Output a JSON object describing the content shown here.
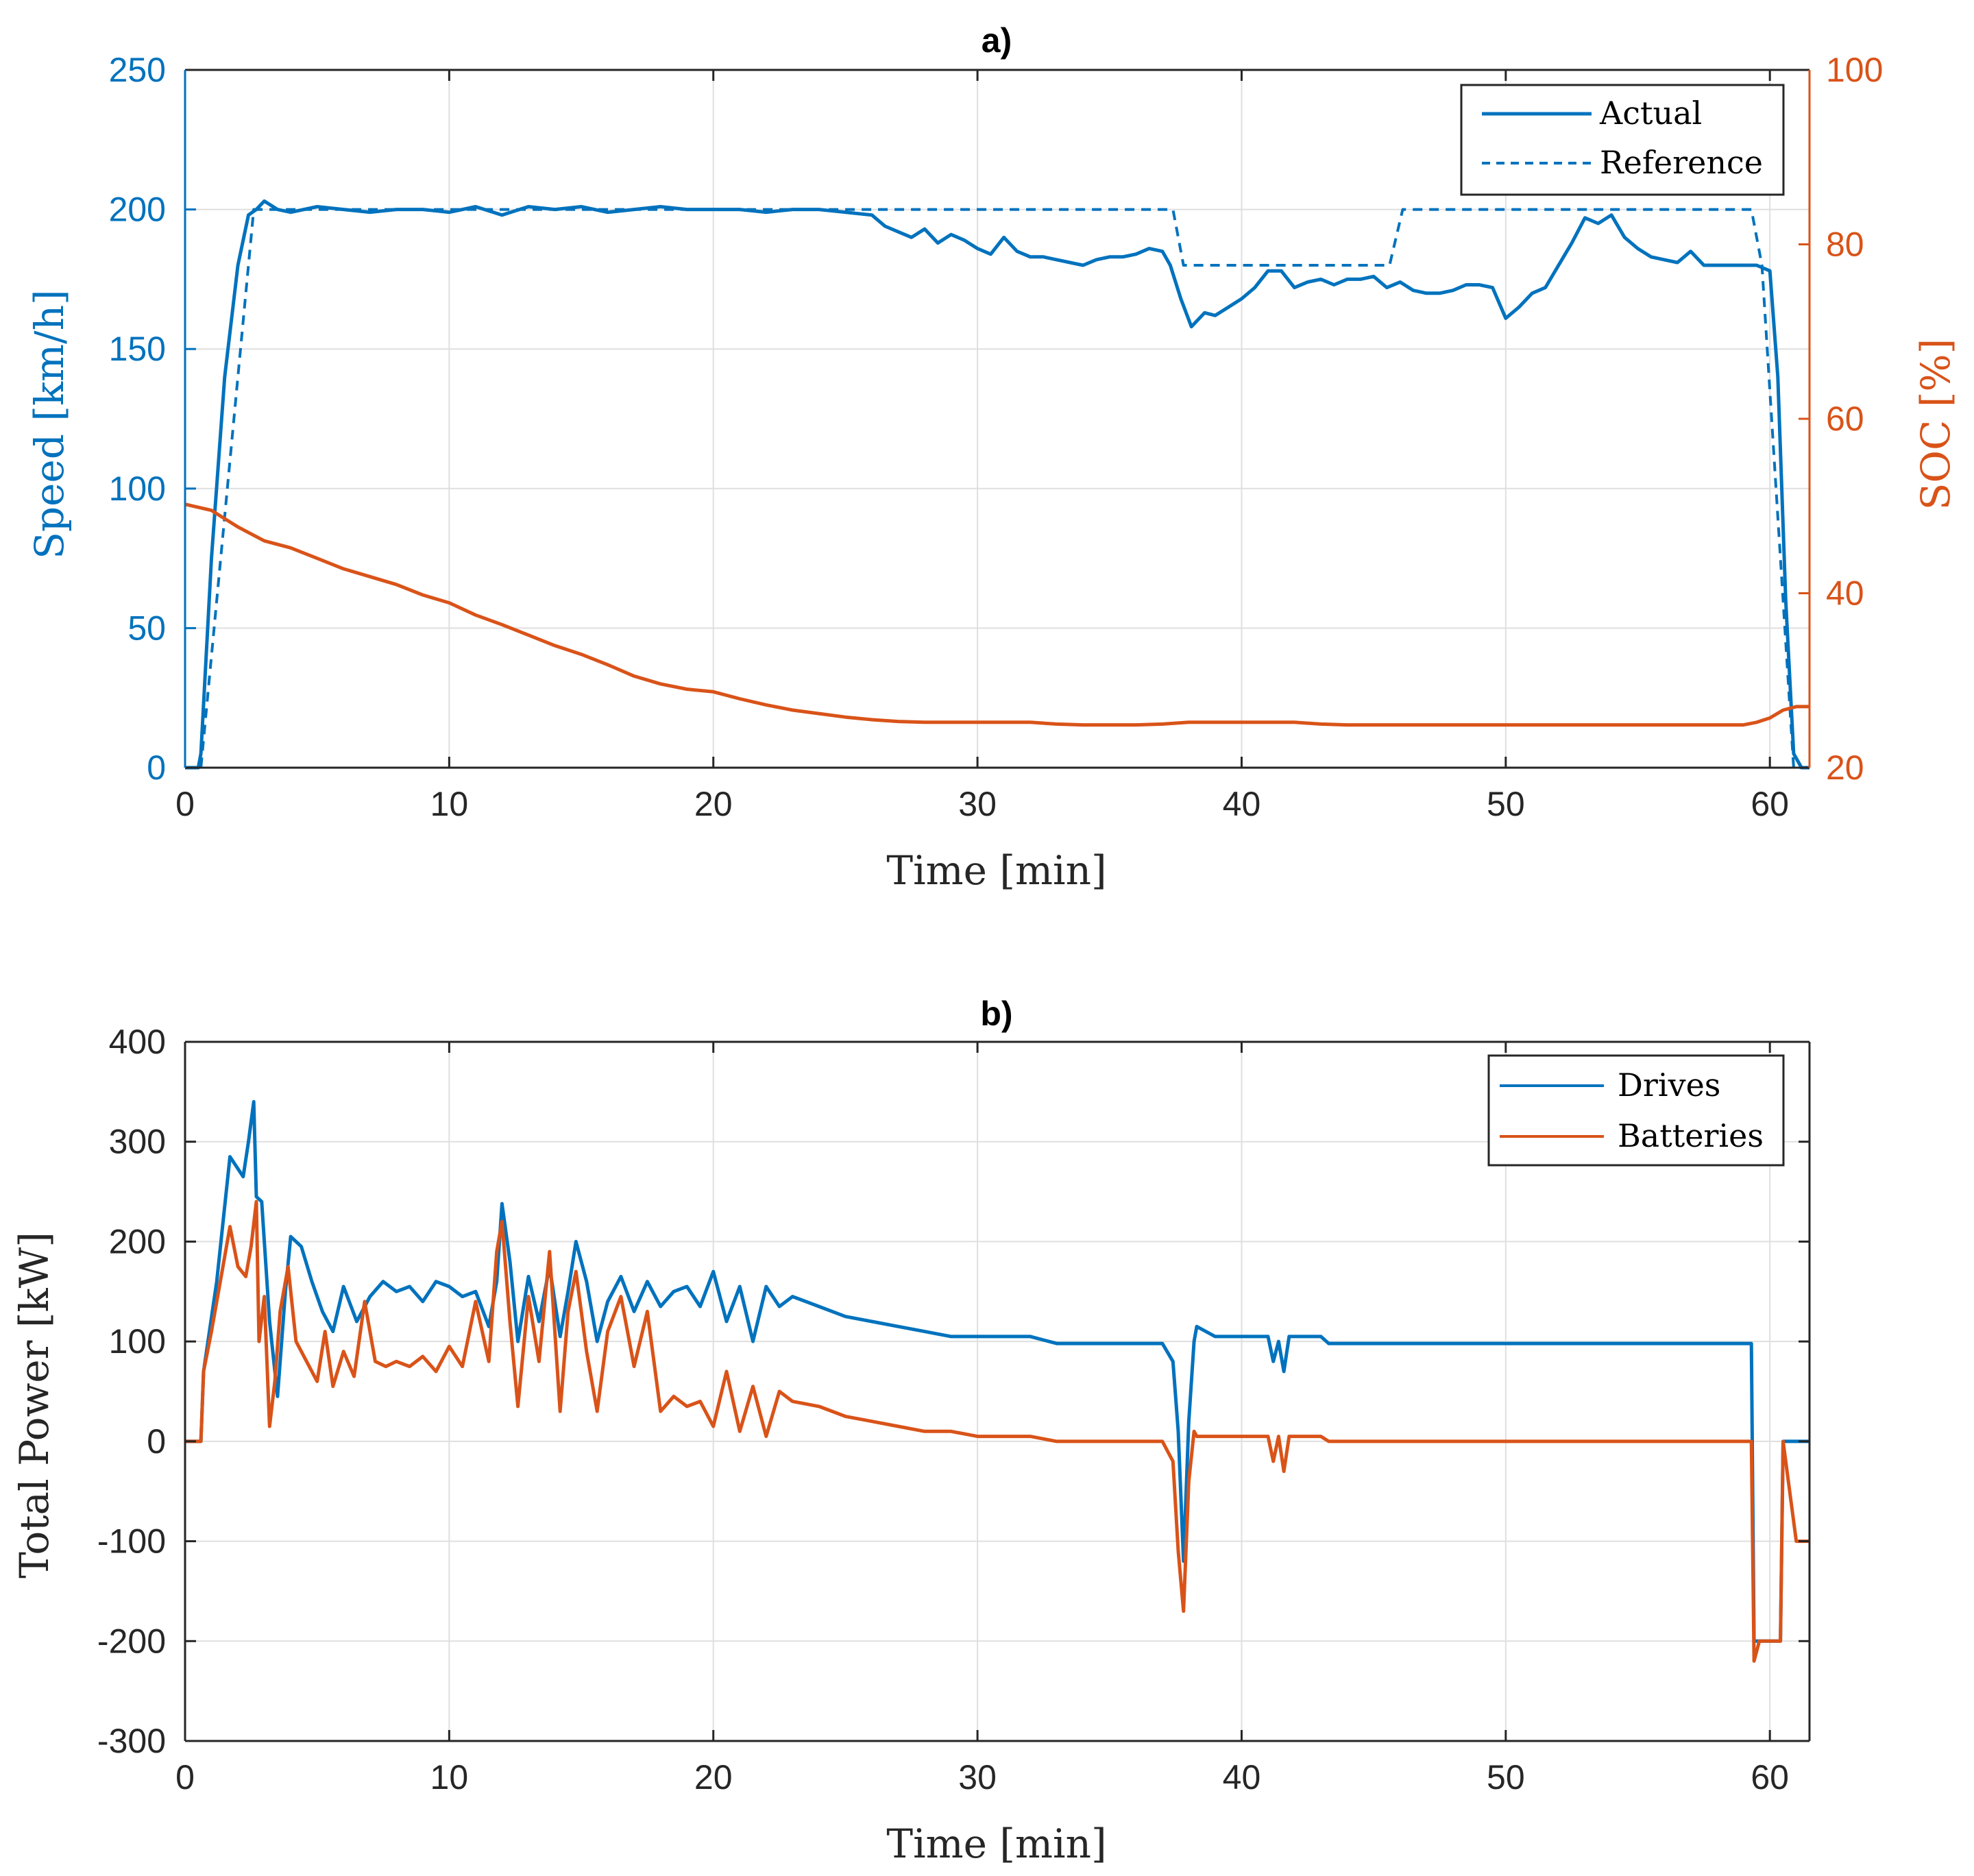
{
  "colors": {
    "blue": "#0072BD",
    "orange": "#D95319",
    "axis": "#262626"
  },
  "chart_data": [
    {
      "id": "a",
      "type": "line",
      "title": "a)",
      "xlabel": "Time [min]",
      "ylabel": "Speed [km/h]",
      "ylabel_right": "SOC [%]",
      "xlim": [
        0,
        61.5
      ],
      "ylim": [
        0,
        250
      ],
      "ylim_right": [
        20,
        100
      ],
      "xticks": [
        0,
        10,
        20,
        30,
        40,
        50,
        60
      ],
      "yticks": [
        0,
        50,
        100,
        150,
        200,
        250
      ],
      "yticks_right": [
        20,
        40,
        60,
        80,
        100
      ],
      "grid": true,
      "legend_position": "top-right",
      "series": [
        {
          "name": "Actual",
          "axis": "left",
          "style": "solid",
          "color": "#0072BD",
          "x": [
            0,
            0.5,
            0.6,
            1.0,
            1.5,
            2.0,
            2.4,
            2.7,
            3.0,
            3.5,
            4.0,
            5,
            6,
            7,
            8,
            9,
            10,
            11,
            12,
            13,
            14,
            15,
            16,
            17,
            18,
            19,
            20,
            21,
            22,
            23,
            24,
            25,
            26,
            26.5,
            27,
            27.5,
            28,
            28.5,
            29,
            29.5,
            30,
            30.5,
            31,
            31.5,
            32,
            32.5,
            33,
            33.5,
            34,
            34.5,
            35,
            35.5,
            36,
            36.5,
            37,
            37.3,
            37.7,
            38.1,
            38.6,
            39,
            39.5,
            40,
            40.5,
            41,
            41.5,
            42,
            42.5,
            43,
            43.5,
            44,
            44.5,
            45,
            45.5,
            46,
            46.5,
            47,
            47.5,
            48,
            48.5,
            49,
            49.5,
            50,
            50.5,
            51,
            51.5,
            52,
            52.5,
            53,
            53.5,
            54,
            54.5,
            55,
            55.5,
            56,
            56.5,
            57,
            57.5,
            58,
            58.5,
            59,
            59.5,
            60,
            60.3,
            60.6,
            60.9,
            61.2,
            61.5
          ],
          "y": [
            0,
            0,
            5,
            75,
            140,
            180,
            198,
            200,
            203,
            200,
            199,
            201,
            200,
            199,
            200,
            200,
            199,
            201,
            198,
            201,
            200,
            201,
            199,
            200,
            201,
            200,
            200,
            200,
            199,
            200,
            200,
            199,
            198,
            194,
            192,
            190,
            193,
            188,
            191,
            189,
            186,
            184,
            190,
            185,
            183,
            183,
            182,
            181,
            180,
            182,
            183,
            183,
            184,
            186,
            185,
            180,
            168,
            158,
            163,
            162,
            165,
            168,
            172,
            178,
            178,
            172,
            174,
            175,
            173,
            175,
            175,
            176,
            172,
            174,
            171,
            170,
            170,
            171,
            173,
            173,
            172,
            161,
            165,
            170,
            172,
            180,
            188,
            197,
            195,
            198,
            190,
            186,
            183,
            182,
            181,
            185,
            180,
            180,
            180,
            180,
            180,
            178,
            140,
            60,
            5,
            0,
            0
          ]
        },
        {
          "name": "Reference",
          "axis": "left",
          "style": "dashed",
          "color": "#0072BD",
          "x": [
            0,
            0.6,
            2.6,
            37.4,
            37.8,
            38.3,
            45.6,
            46.1,
            59.3,
            59.7,
            60.9,
            61.5
          ],
          "y": [
            0,
            0,
            200,
            200,
            180,
            180,
            180,
            200,
            200,
            180,
            0,
            0
          ]
        },
        {
          "name": "SOC",
          "axis": "right",
          "style": "solid",
          "color": "#D95319",
          "x": [
            0,
            1,
            2,
            3,
            4,
            5,
            6,
            7,
            8,
            9,
            10,
            11,
            12,
            13,
            14,
            15,
            16,
            17,
            18,
            19,
            20,
            21,
            22,
            23,
            24,
            25,
            26,
            27,
            28,
            29,
            30,
            31,
            32,
            33,
            34,
            35,
            36,
            37,
            38,
            39,
            40,
            41,
            42,
            43,
            44,
            45,
            50,
            55,
            58,
            59,
            59.5,
            60,
            60.5,
            61,
            61.5
          ],
          "y": [
            50.2,
            49.5,
            47.6,
            46.0,
            45.2,
            44.0,
            42.8,
            41.9,
            41.0,
            39.8,
            38.9,
            37.5,
            36.4,
            35.2,
            34.0,
            33.0,
            31.8,
            30.5,
            29.6,
            29.0,
            28.7,
            27.9,
            27.2,
            26.6,
            26.2,
            25.8,
            25.5,
            25.3,
            25.2,
            25.2,
            25.2,
            25.2,
            25.2,
            25.0,
            24.9,
            24.9,
            24.9,
            25.0,
            25.2,
            25.2,
            25.2,
            25.2,
            25.2,
            25.0,
            24.9,
            24.9,
            24.9,
            24.9,
            24.9,
            24.9,
            25.2,
            25.7,
            26.6,
            27.0,
            27.0
          ]
        }
      ]
    },
    {
      "id": "b",
      "type": "line",
      "title": "b)",
      "xlabel": "Time [min]",
      "ylabel": "Total Power [kW]",
      "xlim": [
        0,
        61.5
      ],
      "ylim": [
        -300,
        400
      ],
      "xticks": [
        0,
        10,
        20,
        30,
        40,
        50,
        60
      ],
      "yticks": [
        -300,
        -200,
        -100,
        0,
        100,
        200,
        300,
        400
      ],
      "grid": true,
      "legend_position": "top-right",
      "series": [
        {
          "name": "Drives",
          "axis": "left",
          "style": "solid",
          "color": "#0072BD",
          "x": [
            0,
            0.6,
            0.7,
            1.2,
            1.7,
            2.2,
            2.4,
            2.6,
            2.7,
            2.9,
            3.2,
            3.5,
            3.8,
            4.0,
            4.4,
            4.8,
            5.2,
            5.6,
            6.0,
            6.5,
            7.0,
            7.5,
            8.0,
            8.5,
            9.0,
            9.5,
            10.0,
            10.5,
            11.0,
            11.5,
            11.8,
            12.0,
            12.3,
            12.6,
            13.0,
            13.4,
            13.8,
            14.2,
            14.5,
            14.8,
            15.2,
            15.6,
            16.0,
            16.5,
            17.0,
            17.5,
            18.0,
            18.5,
            19.0,
            19.5,
            20.0,
            20.5,
            21.0,
            21.5,
            22.0,
            22.5,
            23.0,
            24.0,
            25.0,
            26.0,
            27.0,
            28.0,
            29.0,
            30.0,
            31.0,
            32.0,
            33.0,
            34.0,
            35.0,
            36.0,
            37.0,
            37.4,
            37.6,
            37.8,
            38.0,
            38.2,
            38.3,
            39.0,
            41.0,
            41.2,
            41.4,
            41.6,
            41.8,
            42.0,
            43.0,
            43.3,
            45.0,
            50.0,
            55.0,
            59.0,
            59.3,
            59.4,
            59.6,
            60.0,
            60.4,
            60.5,
            61.0,
            61.5
          ],
          "y": [
            0,
            0,
            70,
            160,
            285,
            265,
            300,
            340,
            245,
            240,
            120,
            45,
            150,
            205,
            195,
            160,
            130,
            110,
            155,
            120,
            145,
            160,
            150,
            155,
            140,
            160,
            155,
            145,
            150,
            115,
            160,
            238,
            180,
            100,
            165,
            120,
            175,
            105,
            150,
            200,
            160,
            100,
            140,
            165,
            130,
            160,
            135,
            150,
            155,
            135,
            170,
            120,
            155,
            100,
            155,
            135,
            145,
            135,
            125,
            120,
            115,
            110,
            105,
            105,
            105,
            105,
            98,
            98,
            98,
            98,
            98,
            80,
            10,
            -120,
            20,
            100,
            115,
            105,
            105,
            80,
            100,
            70,
            105,
            105,
            105,
            98,
            98,
            98,
            98,
            98,
            98,
            -200,
            -200,
            -200,
            -200,
            0,
            0,
            0
          ]
        },
        {
          "name": "Batteries",
          "axis": "left",
          "style": "solid",
          "color": "#D95319",
          "x": [
            0,
            0.6,
            0.7,
            1.0,
            1.4,
            1.7,
            2.0,
            2.3,
            2.5,
            2.7,
            2.8,
            3.0,
            3.2,
            3.4,
            3.6,
            3.9,
            4.2,
            4.6,
            5.0,
            5.3,
            5.6,
            6.0,
            6.4,
            6.8,
            7.2,
            7.6,
            8.0,
            8.5,
            9.0,
            9.5,
            10.0,
            10.5,
            11.0,
            11.5,
            11.8,
            12.0,
            12.3,
            12.6,
            13.0,
            13.4,
            13.8,
            14.2,
            14.5,
            14.8,
            15.2,
            15.6,
            16.0,
            16.5,
            17.0,
            17.5,
            18.0,
            18.5,
            19.0,
            19.5,
            20.0,
            20.5,
            21.0,
            21.5,
            22.0,
            22.5,
            23.0,
            24.0,
            25.0,
            26.0,
            27.0,
            28.0,
            29.0,
            30.0,
            31.0,
            32.0,
            33.0,
            34.0,
            35.0,
            36.0,
            37.0,
            37.4,
            37.6,
            37.8,
            38.0,
            38.2,
            38.3,
            39.0,
            41.0,
            41.2,
            41.4,
            41.6,
            41.8,
            42.0,
            43.0,
            43.3,
            45.0,
            50.0,
            55.0,
            59.0,
            59.3,
            59.4,
            59.6,
            60.0,
            60.4,
            60.5,
            60.8,
            61.0,
            61.5
          ],
          "y": [
            0,
            0,
            70,
            110,
            170,
            215,
            175,
            165,
            195,
            240,
            100,
            145,
            15,
            60,
            130,
            175,
            100,
            80,
            60,
            110,
            55,
            90,
            65,
            140,
            80,
            75,
            80,
            75,
            85,
            70,
            95,
            75,
            140,
            80,
            190,
            220,
            120,
            35,
            145,
            80,
            190,
            30,
            130,
            170,
            90,
            30,
            110,
            145,
            75,
            130,
            30,
            45,
            35,
            40,
            15,
            70,
            10,
            55,
            5,
            50,
            40,
            35,
            25,
            20,
            15,
            10,
            10,
            5,
            5,
            5,
            0,
            0,
            0,
            0,
            0,
            -20,
            -110,
            -170,
            -40,
            10,
            5,
            5,
            5,
            -20,
            5,
            -30,
            5,
            5,
            5,
            0,
            0,
            0,
            0,
            0,
            0,
            -220,
            -200,
            -200,
            -200,
            0,
            -60,
            -100,
            -100
          ]
        }
      ]
    }
  ]
}
